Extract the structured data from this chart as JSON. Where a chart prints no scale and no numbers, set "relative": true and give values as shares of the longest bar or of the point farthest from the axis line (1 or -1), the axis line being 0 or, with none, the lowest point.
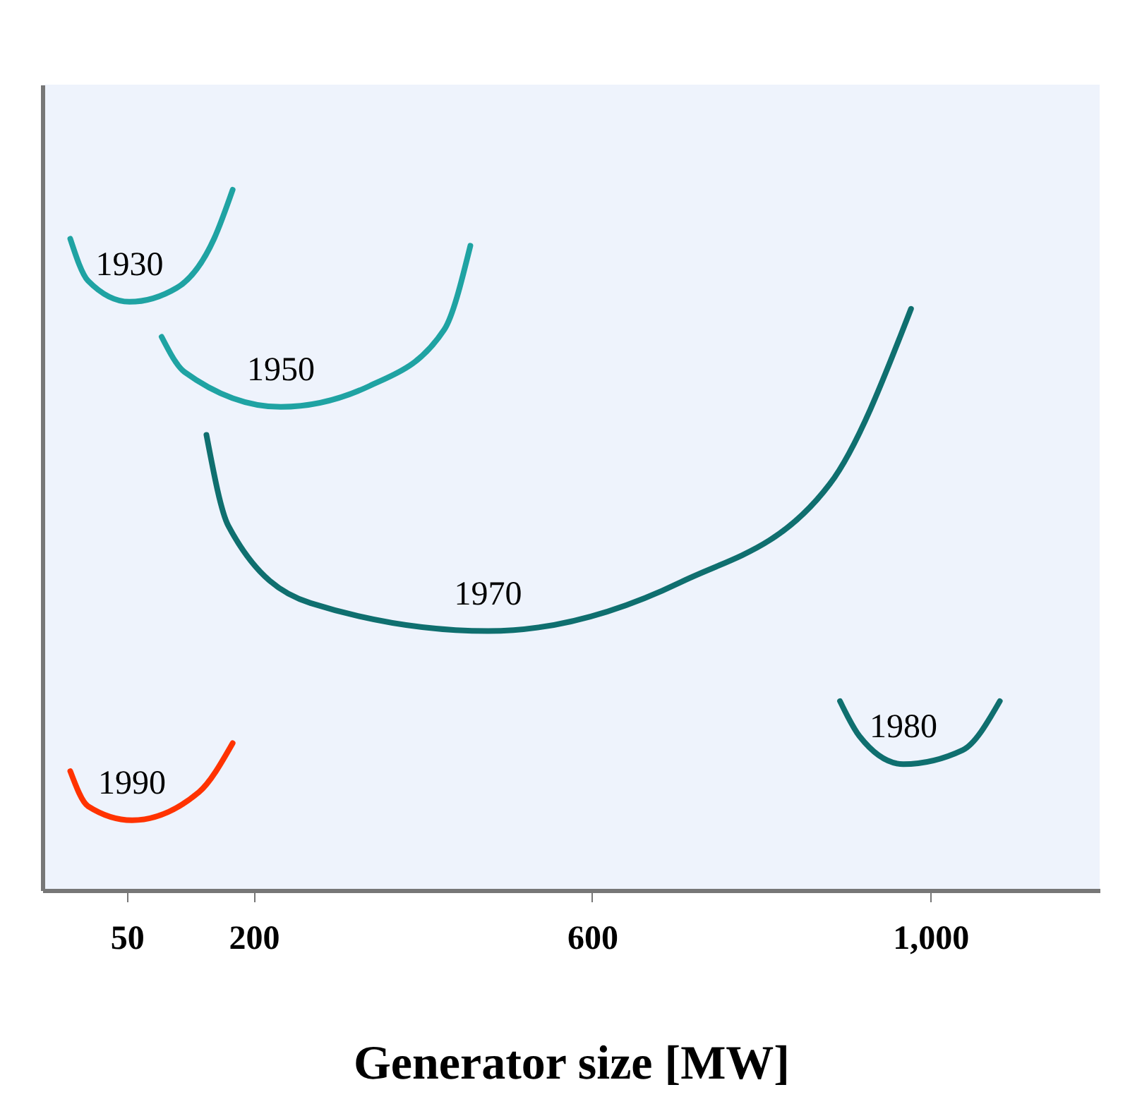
{
  "chart_data": {
    "type": "line",
    "relative": true,
    "xlabel": "Generator size [MW]",
    "xlim": [
      -50,
      1200
    ],
    "xticks": [
      50,
      200,
      600,
      {
        "value": 1000,
        "label": "1,000"
      }
    ],
    "grid": false,
    "legend": false,
    "marker": "none",
    "line_style": "solid",
    "series": [
      {
        "name": "1930",
        "color": "#1fa3a3",
        "x": [
          -17,
          4,
          53,
          109,
          153,
          175
        ],
        "values": [
          0.93,
          0.87,
          0.84,
          0.86,
          0.93,
          1.0
        ]
      },
      {
        "name": "1950",
        "color": "#1fa3a3",
        "x": [
          91,
          118,
          232,
          337,
          425,
          456
        ],
        "values": [
          0.79,
          0.74,
          0.69,
          0.72,
          0.8,
          0.92
        ]
      },
      {
        "name": "1970",
        "color": "#0f6f6f",
        "x": [
          144,
          170,
          267,
          477,
          705,
          881,
          977
        ],
        "values": [
          0.65,
          0.52,
          0.41,
          0.37,
          0.44,
          0.58,
          0.83
        ]
      },
      {
        "name": "1980",
        "color": "#0f6f6f",
        "x": [
          893,
          916,
          968,
          1038,
          1082
        ],
        "values": [
          0.27,
          0.22,
          0.18,
          0.2,
          0.27
        ]
      },
      {
        "name": "1990",
        "color": "#ff3300",
        "x": [
          -17,
          4,
          56,
          135,
          175
        ],
        "values": [
          0.17,
          0.12,
          0.1,
          0.14,
          0.21
        ]
      }
    ]
  }
}
